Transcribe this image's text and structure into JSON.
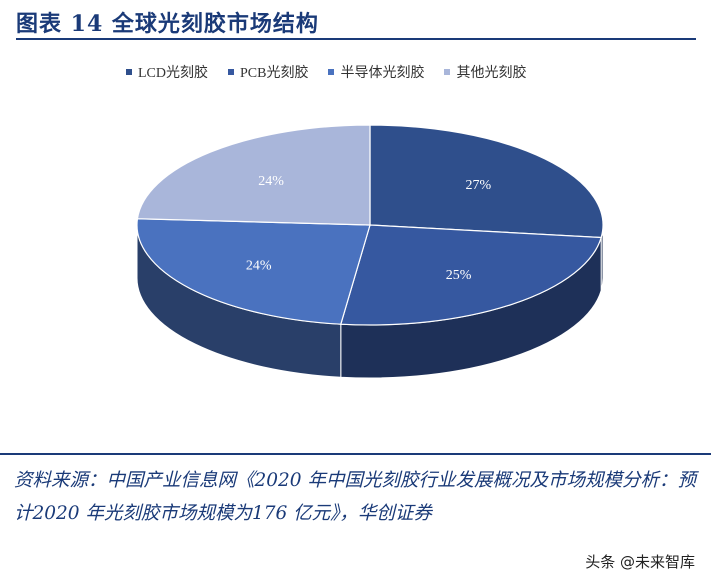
{
  "figure": {
    "title": "图表 14   全球光刻胶市场结构"
  },
  "chart_data": {
    "type": "pie",
    "three_d": true,
    "legend_position": "top",
    "slices": [
      {
        "name": "LCD光刻胶",
        "value": 27,
        "label": "27%",
        "color": "#2f4f8c"
      },
      {
        "name": "PCB光刻胶",
        "value": 25,
        "label": "25%",
        "color": "#3658a0"
      },
      {
        "name": "半导体光刻胶",
        "value": 24,
        "label": "24%",
        "color": "#4a72bf"
      },
      {
        "name": "其他光刻胶",
        "value": 24,
        "label": "24%",
        "color": "#a9b6da"
      }
    ]
  },
  "source": {
    "text": "资料来源：中国产业信息网《2020 年中国光刻胶行业发展概况及市场规模分析：预计2020 年光刻胶市场规模为176 亿元》，华创证券"
  },
  "watermark": {
    "text": "头条 @未来智库"
  }
}
